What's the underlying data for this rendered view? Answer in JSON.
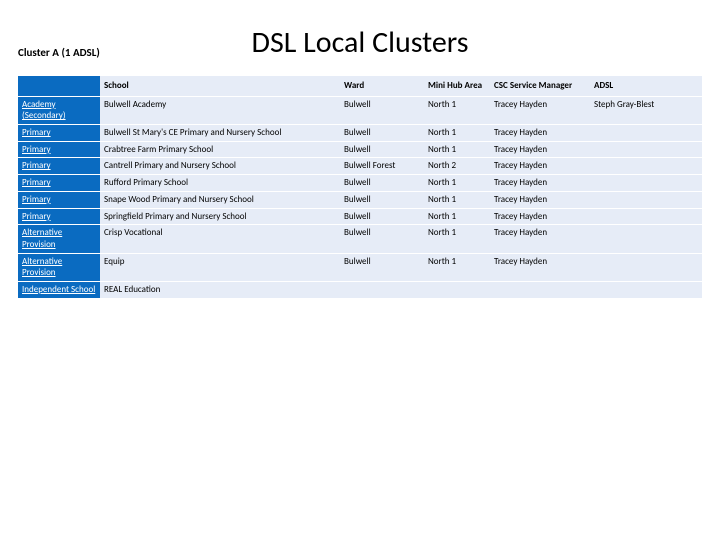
{
  "title": "DSL Local Clusters",
  "cluster_label": "Cluster A (1 ADSL)",
  "columns": {
    "category": "",
    "school": "School",
    "ward": "Ward",
    "mini_hub": "Mini Hub Area",
    "csc": "CSC Service Manager",
    "adsl": "ADSL"
  },
  "rows": [
    {
      "category": "Academy (Secondary)",
      "school": "Bulwell Academy",
      "ward": "Bulwell",
      "mini_hub": "North 1",
      "csc": "Tracey Hayden",
      "adsl": "Steph Gray-Blest"
    },
    {
      "category": "Primary",
      "school": "Bulwell St Mary's CE Primary and Nursery School",
      "ward": "Bulwell",
      "mini_hub": "North 1",
      "csc": "Tracey Hayden",
      "adsl": ""
    },
    {
      "category": "Primary",
      "school": "Crabtree Farm Primary School",
      "ward": "Bulwell",
      "mini_hub": "North 1",
      "csc": "Tracey Hayden",
      "adsl": ""
    },
    {
      "category": "Primary",
      "school": "Cantrell Primary and Nursery School",
      "ward": "Bulwell Forest",
      "mini_hub": "North 2",
      "csc": "Tracey Hayden",
      "adsl": ""
    },
    {
      "category": "Primary",
      "school": "Rufford Primary School",
      "ward": "Bulwell",
      "mini_hub": "North 1",
      "csc": "Tracey Hayden",
      "adsl": ""
    },
    {
      "category": "Primary",
      "school": "Snape Wood Primary and Nursery School",
      "ward": "Bulwell",
      "mini_hub": "North 1",
      "csc": "Tracey Hayden",
      "adsl": ""
    },
    {
      "category": "Primary",
      "school": "Springfield Primary and Nursery School",
      "ward": "Bulwell",
      "mini_hub": "North 1",
      "csc": "Tracey Hayden",
      "adsl": ""
    },
    {
      "category": "Alternative Provision",
      "school": "Crisp Vocational",
      "ward": "Bulwell",
      "mini_hub": "North 1",
      "csc": "Tracey Hayden",
      "adsl": ""
    },
    {
      "category": "Alternative Provision",
      "school": "Equip",
      "ward": "Bulwell",
      "mini_hub": "North 1",
      "csc": "Tracey Hayden",
      "adsl": ""
    },
    {
      "category": "Independent School",
      "school": "REAL Education",
      "ward": "",
      "mini_hub": "",
      "csc": "",
      "adsl": ""
    }
  ]
}
